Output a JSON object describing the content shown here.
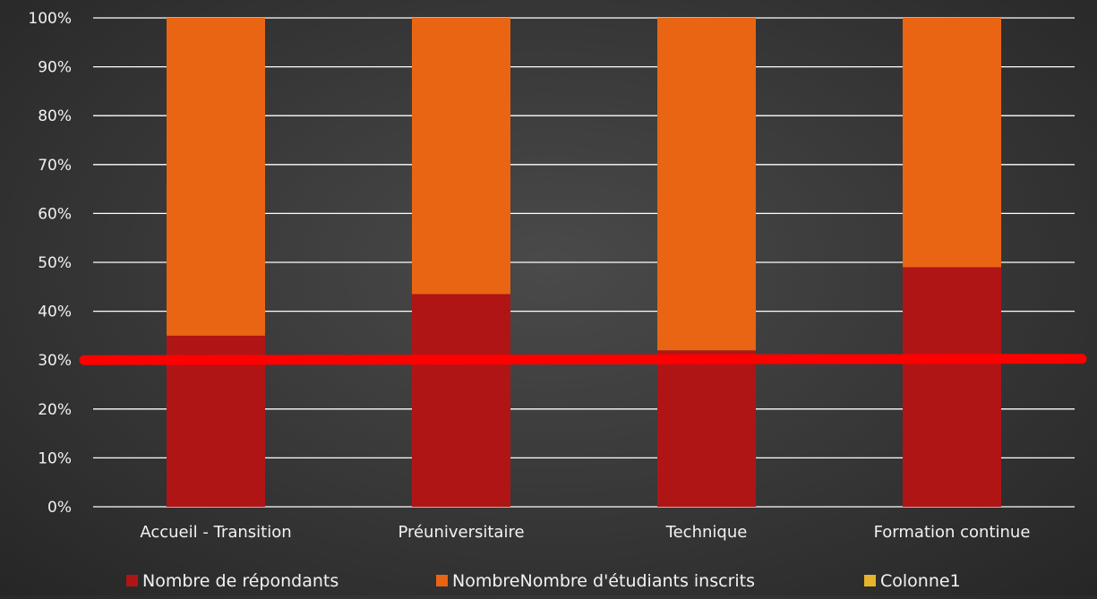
{
  "chart_data": {
    "type": "bar",
    "stacked": "percent",
    "categories": [
      "Accueil - Transition",
      "Préuniversitaire",
      "Technique",
      "Formation continue"
    ],
    "series": [
      {
        "name": "Nombre de répondants",
        "values": [
          35,
          43.5,
          32,
          49
        ]
      },
      {
        "name": "NombreNombre d'étudiants inscrits",
        "values": [
          65,
          56.5,
          68,
          51
        ]
      },
      {
        "name": "Colonne1",
        "values": [
          0,
          0,
          0,
          0
        ]
      }
    ],
    "y_ticks": [
      "0%",
      "10%",
      "20%",
      "30%",
      "40%",
      "50%",
      "60%",
      "70%",
      "80%",
      "90%",
      "100%"
    ],
    "ylim": [
      0,
      100
    ],
    "reference_line": 30,
    "grid": true,
    "legend_position": "bottom",
    "colors": {
      "series": [
        "#b01515",
        "#e96513",
        "#e6b32c"
      ],
      "reference_line": "#ff0000",
      "gridline": "#ffffff"
    }
  }
}
